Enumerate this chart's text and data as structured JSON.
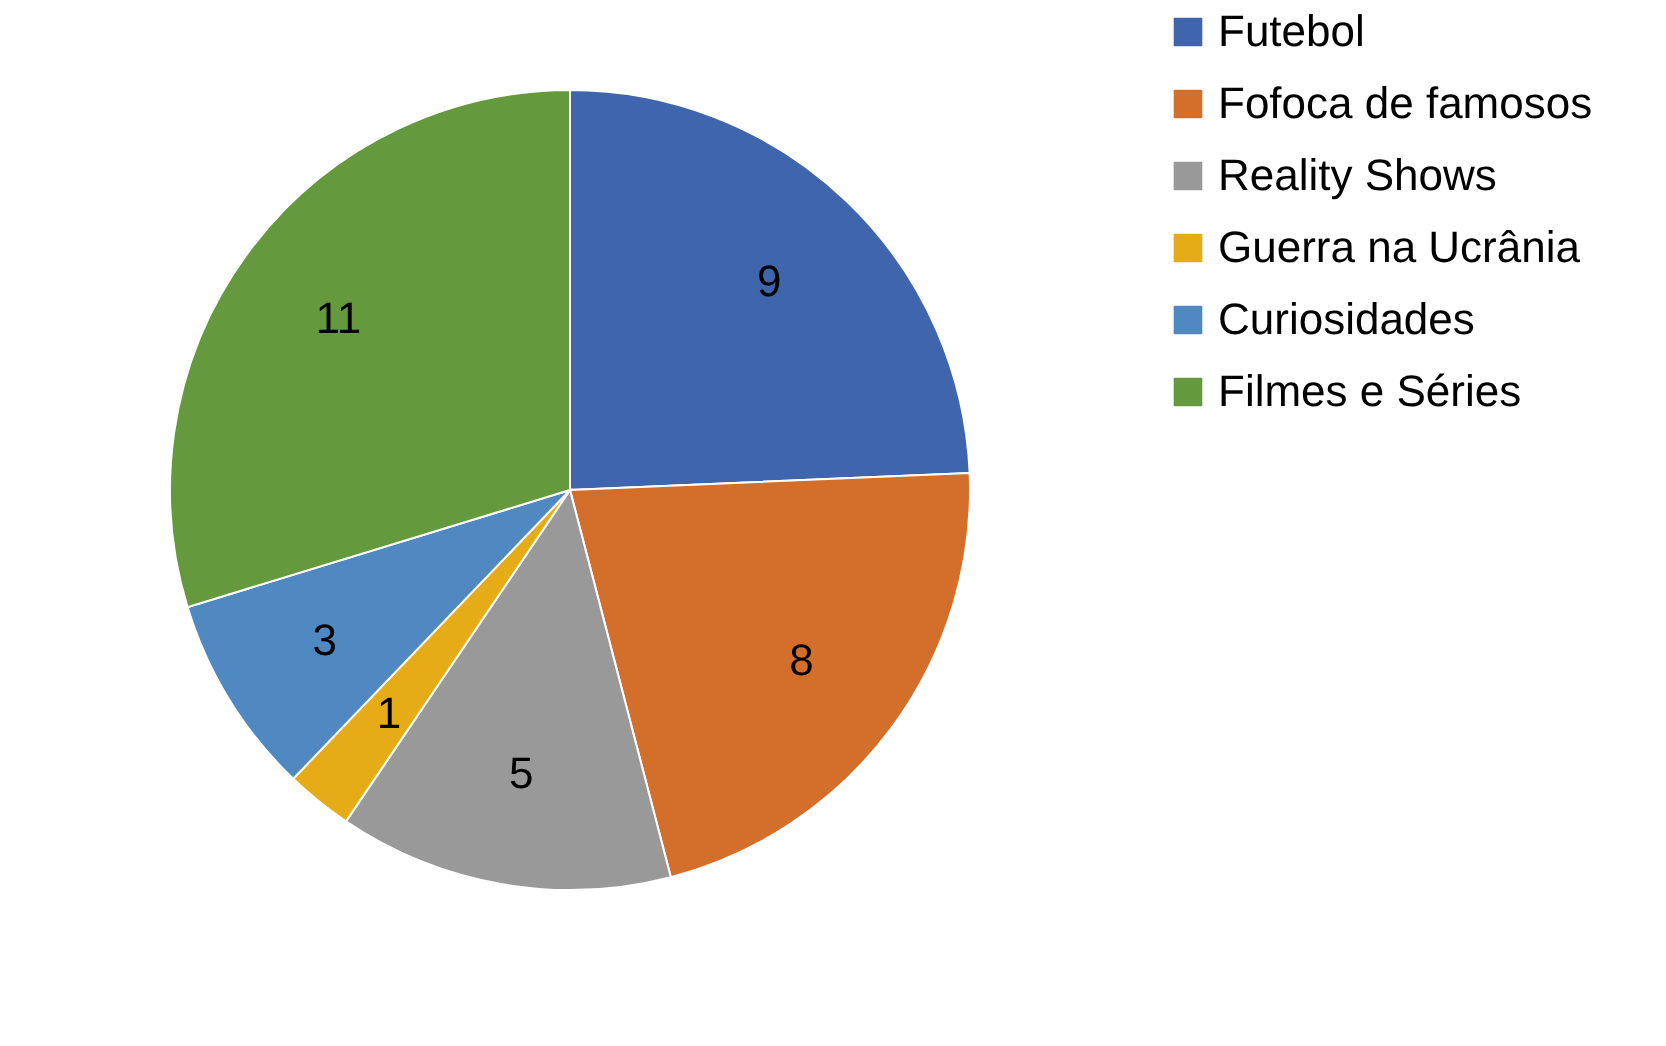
{
  "chart_data": {
    "type": "pie",
    "categories": [
      "Futebol",
      "Fofoca de famosos",
      "Reality Shows",
      "Guerra na Ucrânia",
      "Curiosidades",
      "Filmes e Séries"
    ],
    "values": [
      9,
      8,
      5,
      1,
      3,
      11
    ],
    "colors": [
      "#3f65ad",
      "#d46f2b",
      "#999999",
      "#e6ac17",
      "#5089c2",
      "#64993e"
    ],
    "data_labels": true,
    "legend": "right"
  }
}
